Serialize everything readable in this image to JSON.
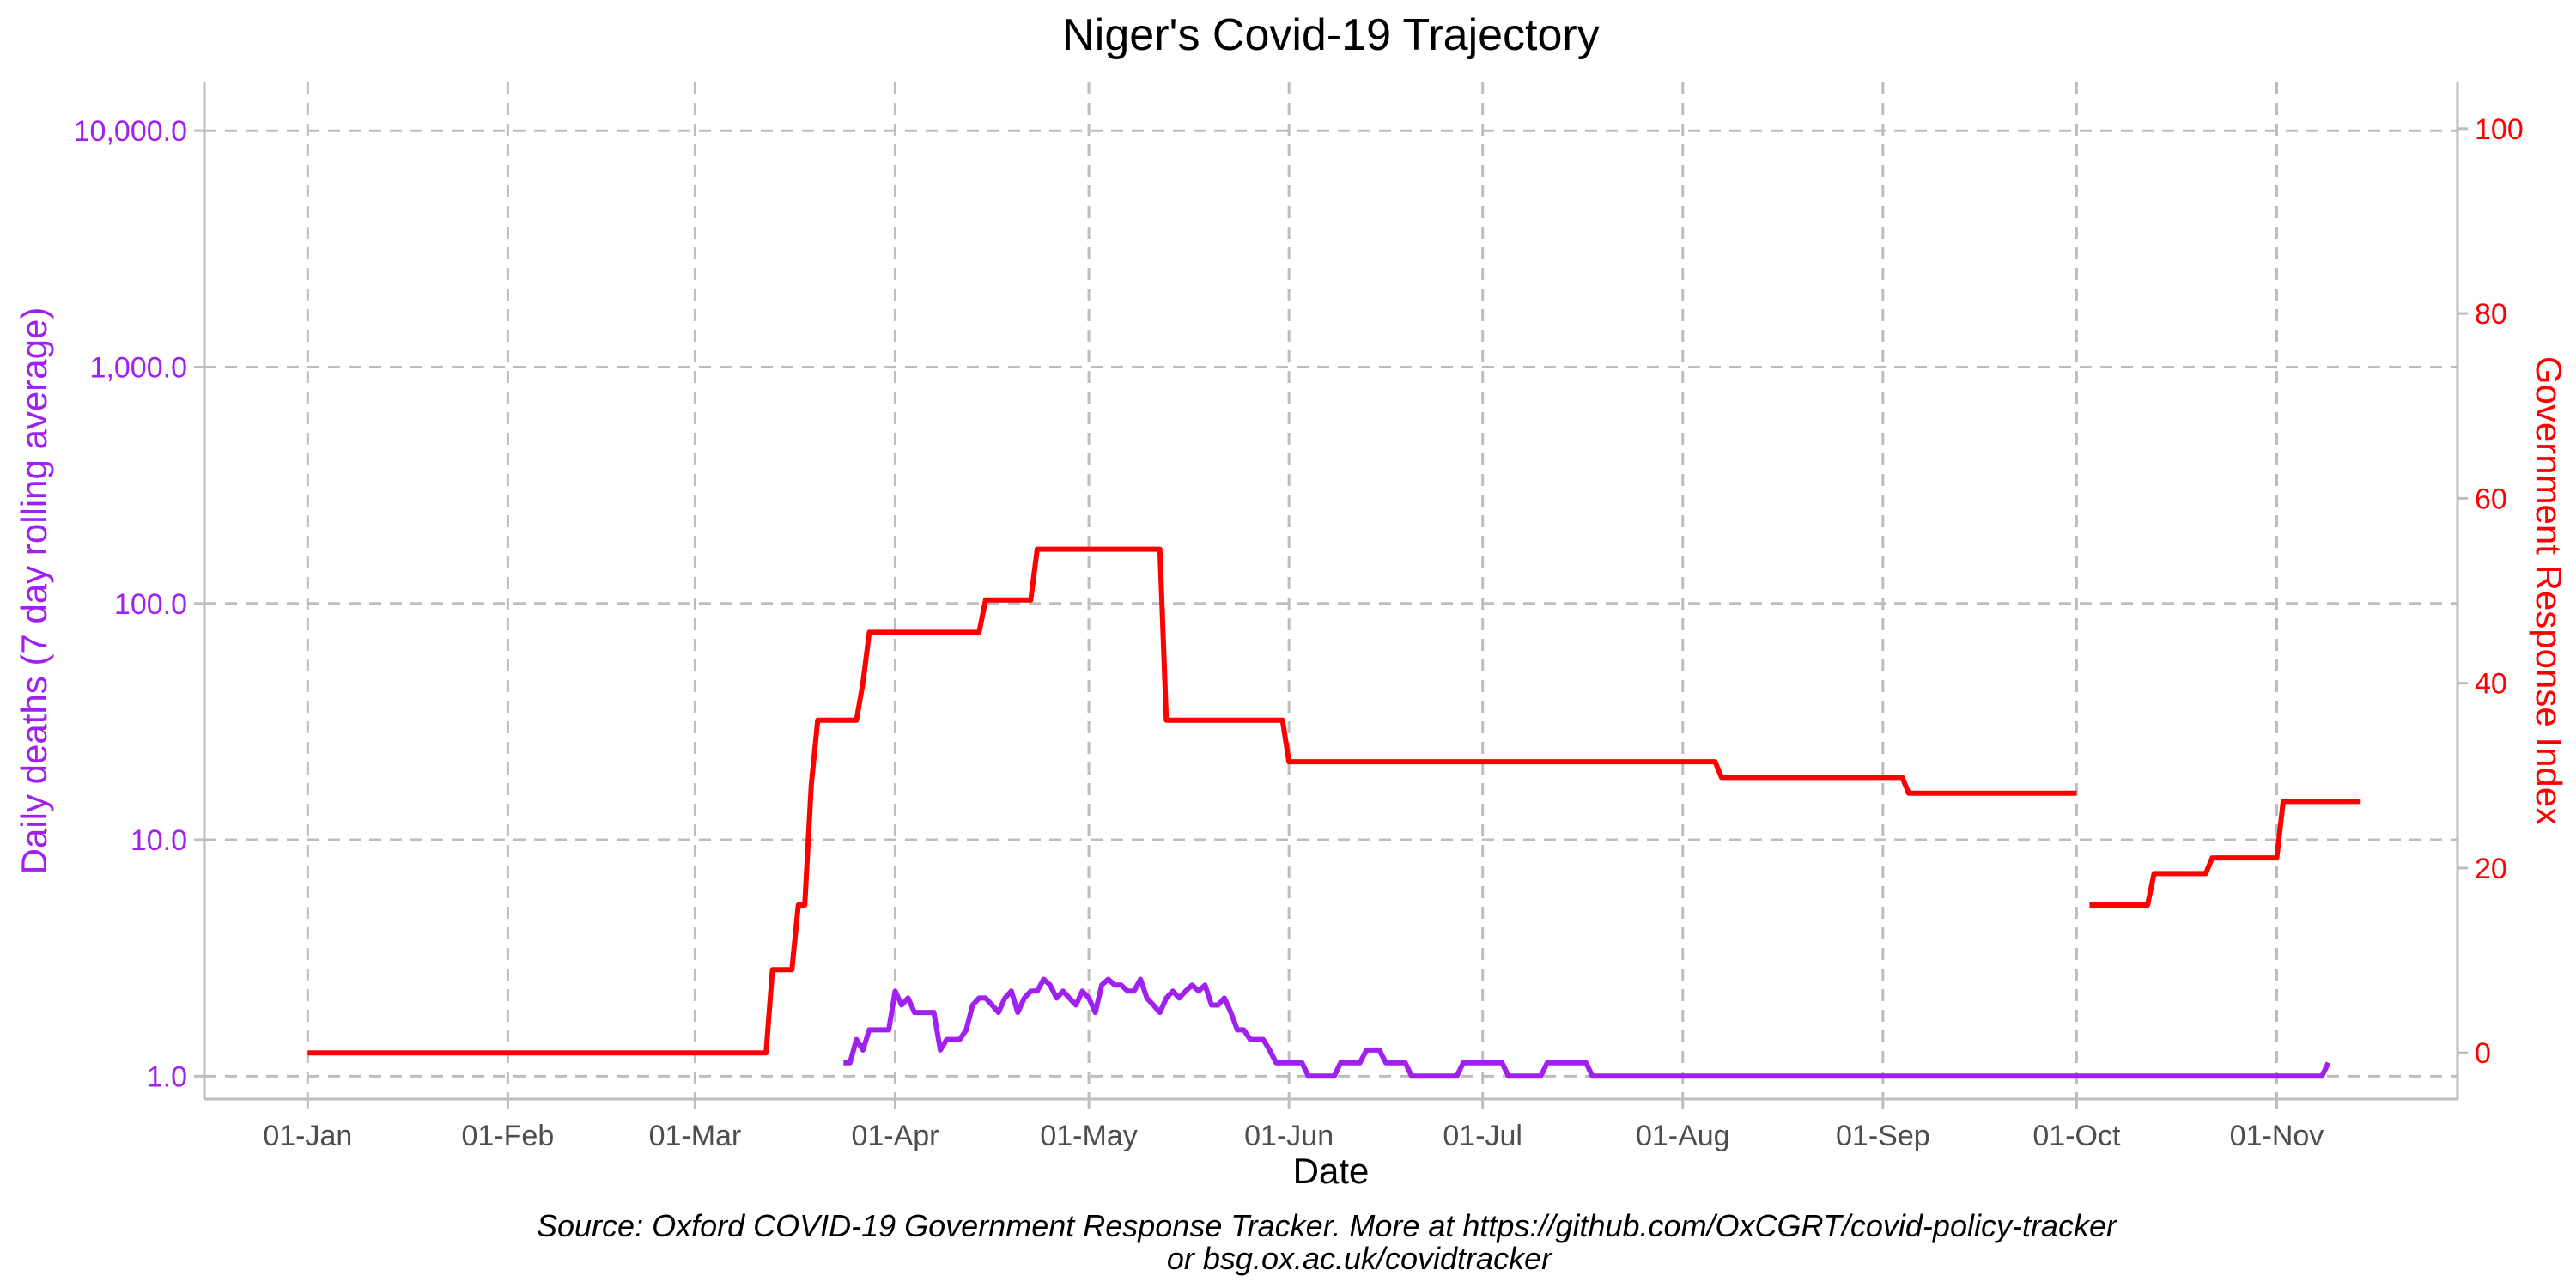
{
  "chart_data": {
    "type": "line",
    "title": "Niger's Covid-19 Trajectory",
    "xlabel": "Date",
    "ylabel_left": "Daily deaths (7 day rolling average)",
    "ylabel_right": "Government Response Index",
    "caption_line1": "Source: Oxford COVID-19 Government Response Tracker. More at https://github.com/OxCGRT/covid-policy-tracker",
    "caption_line2": "or bsg.ox.ac.uk/covidtracker",
    "x_tick_labels": [
      "01-Jan",
      "01-Feb",
      "01-Mar",
      "01-Apr",
      "01-May",
      "01-Jun",
      "01-Jul",
      "01-Aug",
      "01-Sep",
      "01-Oct",
      "01-Nov"
    ],
    "x_tick_dates": [
      "2020-01-01",
      "2020-02-01",
      "2020-03-01",
      "2020-04-01",
      "2020-05-01",
      "2020-06-01",
      "2020-07-01",
      "2020-08-01",
      "2020-09-01",
      "2020-10-01",
      "2020-11-01"
    ],
    "xlim": [
      "2019-12-16",
      "2020-11-29"
    ],
    "y_left": {
      "scale": "log10",
      "lim": [
        0.8,
        16000
      ],
      "ticks": [
        1,
        10,
        100,
        1000,
        10000
      ],
      "tick_labels": [
        "1.0",
        "10.0",
        "100.0",
        "1,000.0",
        "10,000.0"
      ],
      "color": "#a020f0"
    },
    "y_right": {
      "scale": "linear",
      "lim": [
        -5,
        105
      ],
      "ticks": [
        0,
        20,
        40,
        60,
        80,
        100
      ],
      "tick_labels": [
        "0",
        "20",
        "40",
        "60",
        "80",
        "100"
      ],
      "color": "#ff0000"
    },
    "grid": true,
    "series": [
      {
        "name": "Daily deaths (7 day rolling average)",
        "axis": "left",
        "color": "#a020f0",
        "segments": [
          [
            [
              "2020-03-24",
              1.14
            ],
            [
              "2020-03-25",
              1.14
            ],
            [
              "2020-03-26",
              1.43
            ],
            [
              "2020-03-27",
              1.29
            ],
            [
              "2020-03-28",
              1.57
            ],
            [
              "2020-03-29",
              1.57
            ],
            [
              "2020-03-30",
              1.57
            ],
            [
              "2020-03-31",
              1.57
            ],
            [
              "2020-04-01",
              2.29
            ],
            [
              "2020-04-02",
              2.0
            ],
            [
              "2020-04-03",
              2.14
            ],
            [
              "2020-04-04",
              1.86
            ],
            [
              "2020-04-05",
              1.86
            ],
            [
              "2020-04-06",
              1.86
            ],
            [
              "2020-04-07",
              1.86
            ],
            [
              "2020-04-08",
              1.29
            ],
            [
              "2020-04-09",
              1.43
            ],
            [
              "2020-04-10",
              1.43
            ],
            [
              "2020-04-11",
              1.43
            ],
            [
              "2020-04-12",
              1.57
            ],
            [
              "2020-04-13",
              2.0
            ],
            [
              "2020-04-14",
              2.14
            ],
            [
              "2020-04-15",
              2.14
            ],
            [
              "2020-04-16",
              2.0
            ],
            [
              "2020-04-17",
              1.86
            ],
            [
              "2020-04-18",
              2.14
            ],
            [
              "2020-04-19",
              2.29
            ],
            [
              "2020-04-20",
              1.86
            ],
            [
              "2020-04-21",
              2.14
            ],
            [
              "2020-04-22",
              2.29
            ],
            [
              "2020-04-23",
              2.29
            ],
            [
              "2020-04-24",
              2.57
            ],
            [
              "2020-04-25",
              2.43
            ],
            [
              "2020-04-26",
              2.14
            ],
            [
              "2020-04-27",
              2.29
            ],
            [
              "2020-04-28",
              2.14
            ],
            [
              "2020-04-29",
              2.0
            ],
            [
              "2020-04-30",
              2.29
            ],
            [
              "2020-05-01",
              2.14
            ],
            [
              "2020-05-02",
              1.86
            ],
            [
              "2020-05-03",
              2.43
            ],
            [
              "2020-05-04",
              2.57
            ],
            [
              "2020-05-05",
              2.43
            ],
            [
              "2020-05-06",
              2.43
            ],
            [
              "2020-05-07",
              2.29
            ],
            [
              "2020-05-08",
              2.29
            ],
            [
              "2020-05-09",
              2.57
            ],
            [
              "2020-05-10",
              2.14
            ],
            [
              "2020-05-11",
              2.0
            ],
            [
              "2020-05-12",
              1.86
            ],
            [
              "2020-05-13",
              2.14
            ],
            [
              "2020-05-14",
              2.29
            ],
            [
              "2020-05-15",
              2.14
            ],
            [
              "2020-05-16",
              2.29
            ],
            [
              "2020-05-17",
              2.43
            ],
            [
              "2020-05-18",
              2.29
            ],
            [
              "2020-05-19",
              2.43
            ],
            [
              "2020-05-20",
              2.0
            ],
            [
              "2020-05-21",
              2.0
            ],
            [
              "2020-05-22",
              2.14
            ],
            [
              "2020-05-23",
              1.86
            ],
            [
              "2020-05-24",
              1.57
            ],
            [
              "2020-05-25",
              1.57
            ],
            [
              "2020-05-26",
              1.43
            ],
            [
              "2020-05-27",
              1.43
            ],
            [
              "2020-05-28",
              1.43
            ],
            [
              "2020-05-29",
              1.29
            ],
            [
              "2020-05-30",
              1.14
            ],
            [
              "2020-05-31",
              1.14
            ],
            [
              "2020-06-01",
              1.14
            ],
            [
              "2020-06-02",
              1.14
            ],
            [
              "2020-06-03",
              1.14
            ],
            [
              "2020-06-04",
              1.0
            ],
            [
              "2020-06-05",
              1.0
            ],
            [
              "2020-06-06",
              1.0
            ],
            [
              "2020-06-07",
              1.0
            ],
            [
              "2020-06-08",
              1.0
            ],
            [
              "2020-06-09",
              1.14
            ],
            [
              "2020-06-10",
              1.14
            ],
            [
              "2020-06-11",
              1.14
            ],
            [
              "2020-06-12",
              1.14
            ],
            [
              "2020-06-13",
              1.29
            ],
            [
              "2020-06-14",
              1.29
            ],
            [
              "2020-06-15",
              1.29
            ],
            [
              "2020-06-16",
              1.14
            ],
            [
              "2020-06-17",
              1.14
            ],
            [
              "2020-06-18",
              1.14
            ],
            [
              "2020-06-19",
              1.14
            ],
            [
              "2020-06-20",
              1.0
            ],
            [
              "2020-06-21",
              1.0
            ],
            [
              "2020-06-22",
              1.0
            ],
            [
              "2020-06-23",
              1.0
            ],
            [
              "2020-06-24",
              1.0
            ],
            [
              "2020-06-25",
              1.0
            ],
            [
              "2020-06-26",
              1.0
            ],
            [
              "2020-06-27",
              1.0
            ],
            [
              "2020-06-28",
              1.14
            ],
            [
              "2020-06-29",
              1.14
            ],
            [
              "2020-06-30",
              1.14
            ],
            [
              "2020-07-01",
              1.14
            ],
            [
              "2020-07-02",
              1.14
            ],
            [
              "2020-07-03",
              1.14
            ],
            [
              "2020-07-04",
              1.14
            ],
            [
              "2020-07-05",
              1.0
            ],
            [
              "2020-07-06",
              1.0
            ],
            [
              "2020-07-07",
              1.0
            ],
            [
              "2020-07-08",
              1.0
            ],
            [
              "2020-07-09",
              1.0
            ],
            [
              "2020-07-10",
              1.0
            ],
            [
              "2020-07-11",
              1.14
            ],
            [
              "2020-07-12",
              1.14
            ],
            [
              "2020-07-13",
              1.14
            ],
            [
              "2020-07-14",
              1.14
            ],
            [
              "2020-07-15",
              1.14
            ],
            [
              "2020-07-16",
              1.14
            ],
            [
              "2020-07-17",
              1.14
            ],
            [
              "2020-07-18",
              1.0
            ],
            [
              "2020-11-08",
              1.0
            ],
            [
              "2020-11-09",
              1.14
            ]
          ]
        ]
      },
      {
        "name": "Government Response Index",
        "axis": "right",
        "color": "#ff0000",
        "segments": [
          [
            [
              "2020-01-01",
              0
            ],
            [
              "2020-03-12",
              0
            ],
            [
              "2020-03-13",
              9
            ],
            [
              "2020-03-16",
              9
            ],
            [
              "2020-03-17",
              16
            ],
            [
              "2020-03-18",
              16
            ],
            [
              "2020-03-19",
              29
            ],
            [
              "2020-03-20",
              36
            ],
            [
              "2020-03-26",
              36
            ],
            [
              "2020-03-27",
              40
            ],
            [
              "2020-03-28",
              45.5
            ],
            [
              "2020-04-14",
              45.5
            ],
            [
              "2020-04-15",
              49
            ],
            [
              "2020-04-22",
              49
            ],
            [
              "2020-04-23",
              54.5
            ],
            [
              "2020-05-12",
              54.5
            ],
            [
              "2020-05-13",
              36
            ],
            [
              "2020-05-31",
              36
            ],
            [
              "2020-06-01",
              31.5
            ],
            [
              "2020-08-06",
              31.5
            ],
            [
              "2020-08-07",
              29.8
            ],
            [
              "2020-09-04",
              29.8
            ],
            [
              "2020-09-05",
              28.1
            ],
            [
              "2020-10-01",
              28.1
            ]
          ],
          [
            [
              "2020-10-03",
              16
            ],
            [
              "2020-10-12",
              16
            ],
            [
              "2020-10-13",
              19.4
            ],
            [
              "2020-10-21",
              19.4
            ],
            [
              "2020-10-22",
              21.1
            ],
            [
              "2020-11-01",
              21.1
            ],
            [
              "2020-11-02",
              27.2
            ],
            [
              "2020-11-14",
              27.2
            ]
          ]
        ]
      }
    ]
  }
}
